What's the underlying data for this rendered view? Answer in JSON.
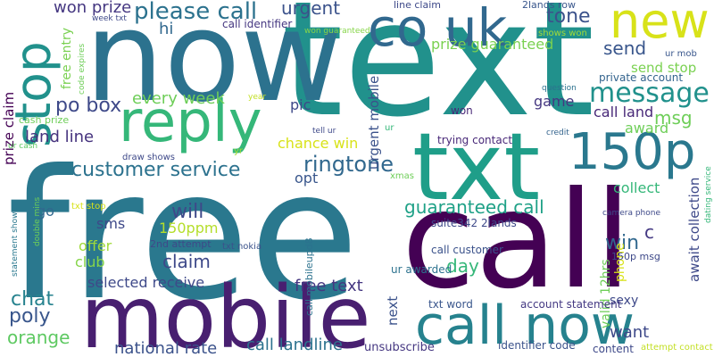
{
  "words": [
    {
      "text": "free",
      "color": "#2a788e"
    },
    {
      "text": "text",
      "color": "#21918c"
    },
    {
      "text": "now",
      "color": "#2c728e"
    },
    {
      "text": "call",
      "color": "#440154"
    },
    {
      "text": "mobile",
      "color": "#481f70"
    },
    {
      "text": "txt",
      "color": "#1f9e89"
    },
    {
      "text": "new",
      "color": "#d8e219"
    },
    {
      "text": "co uk",
      "color": "#31688e"
    },
    {
      "text": "reply",
      "color": "#35b779"
    },
    {
      "text": "stop",
      "color": "#21918c"
    },
    {
      "text": "call now",
      "color": "#26828e"
    },
    {
      "text": "150p",
      "color": "#2a788e"
    },
    {
      "text": "please call",
      "color": "#2c728e"
    },
    {
      "text": "message",
      "color": "#21918c"
    },
    {
      "text": "customer service",
      "color": "#2c728e"
    },
    {
      "text": "ringtone",
      "color": "#31688e"
    },
    {
      "text": "guaranteed call",
      "color": "#1fa187"
    },
    {
      "text": "urgent",
      "color": "#3b528b"
    },
    {
      "text": "tone",
      "color": "#3b528b"
    },
    {
      "text": "send",
      "color": "#39568c"
    },
    {
      "text": "po box",
      "color": "#3e4989"
    },
    {
      "text": "every week",
      "color": "#6ece58"
    },
    {
      "text": "call land",
      "color": "#482878"
    },
    {
      "text": "msg",
      "color": "#6ece58"
    },
    {
      "text": "prize guaranteed",
      "color": "#7ad151"
    },
    {
      "text": "land line",
      "color": "#46337e"
    },
    {
      "text": "will",
      "color": "#3e4989"
    },
    {
      "text": "claim",
      "color": "#3e4989"
    },
    {
      "text": "win",
      "color": "#31688e"
    },
    {
      "text": "chat",
      "color": "#26828e"
    },
    {
      "text": "poly",
      "color": "#39568c"
    },
    {
      "text": "orange",
      "color": "#5ec962"
    },
    {
      "text": "day",
      "color": "#35b779"
    },
    {
      "text": "free text",
      "color": "#453781"
    },
    {
      "text": "national rate",
      "color": "#3b528b"
    },
    {
      "text": "call landline",
      "color": "#2c728e"
    },
    {
      "text": "selected receive",
      "color": "#3e4989"
    },
    {
      "text": "want",
      "color": "#3e4989"
    },
    {
      "text": "prize claim",
      "color": "#440154"
    },
    {
      "text": "won prize",
      "color": "#453781"
    },
    {
      "text": "hi",
      "color": "#31688e"
    },
    {
      "text": "free entry",
      "color": "#7ad151"
    },
    {
      "text": "pic",
      "color": "#3e4989"
    },
    {
      "text": "chance win",
      "color": "#d8e219"
    },
    {
      "text": "opt",
      "color": "#39568c"
    },
    {
      "text": "sms",
      "color": "#3e4989"
    },
    {
      "text": "150ppm",
      "color": "#b5de2b"
    },
    {
      "text": "offer",
      "color": "#a0da39"
    },
    {
      "text": "club",
      "color": "#86d549"
    },
    {
      "text": "go",
      "color": "#31688e"
    },
    {
      "text": "collect",
      "color": "#35b779"
    },
    {
      "text": "award",
      "color": "#6ece58"
    },
    {
      "text": "send stop",
      "color": "#7ad151"
    },
    {
      "text": "game",
      "color": "#453781"
    },
    {
      "text": "next",
      "color": "#3b528b"
    },
    {
      "text": "urgent mobile",
      "color": "#3b528b"
    },
    {
      "text": "await collection",
      "color": "#3e4989"
    },
    {
      "text": "valid 12hrs",
      "color": "#6ece58"
    },
    {
      "text": "phone",
      "color": "#d8e219"
    },
    {
      "text": "c",
      "color": "#443983"
    },
    {
      "text": "sexy",
      "color": "#3e4989"
    },
    {
      "text": "account statement",
      "color": "#443983"
    },
    {
      "text": "identifier code",
      "color": "#3b528b"
    },
    {
      "text": "unsubscribe",
      "color": "#453781"
    },
    {
      "text": "content",
      "color": "#3e4989"
    },
    {
      "text": "attempt contact",
      "color": "#c2df23"
    },
    {
      "text": "call customer",
      "color": "#3b528b"
    },
    {
      "text": "txt word",
      "color": "#39568c"
    },
    {
      "text": "ur awarded",
      "color": "#2c728e"
    },
    {
      "text": "call mobileupd8",
      "color": "#2c728e"
    },
    {
      "text": "suite342 2lands",
      "color": "#3e4989"
    },
    {
      "text": "trying contact",
      "color": "#482878"
    },
    {
      "text": "won",
      "color": "#482878"
    },
    {
      "text": "private account",
      "color": "#33638d"
    },
    {
      "text": "ur mob",
      "color": "#39568c"
    },
    {
      "text": "line claim",
      "color": "#3e4989"
    },
    {
      "text": "2lands row",
      "color": "#39568c"
    },
    {
      "text": "call identifier",
      "color": "#453781"
    },
    {
      "text": "won guaranteed",
      "color": "#86d549"
    },
    {
      "text": "week txt",
      "color": "#3e4989"
    },
    {
      "text": "shows won",
      "color": "#a0da39"
    },
    {
      "text": "code expires",
      "color": "#6ece58"
    },
    {
      "text": "cash prize",
      "color": "#6ece58"
    },
    {
      "text": "ur cash",
      "color": "#5ec962"
    },
    {
      "text": "year",
      "color": "#c2df23"
    },
    {
      "text": "tell ur",
      "color": "#3e4989"
    },
    {
      "text": "ur",
      "color": "#35b779"
    },
    {
      "text": "credit",
      "color": "#33638d"
    },
    {
      "text": "question",
      "color": "#2c728e"
    },
    {
      "text": "yr",
      "color": "#a0da39"
    },
    {
      "text": "draw shows",
      "color": "#3e4989"
    },
    {
      "text": "xmas",
      "color": "#6ece58"
    },
    {
      "text": "txt stop",
      "color": "#d8e219"
    },
    {
      "text": "2nd attempt",
      "color": "#3e4989"
    },
    {
      "text": "txt nokia",
      "color": "#3b528b"
    },
    {
      "text": "camera phone",
      "color": "#3e4989"
    },
    {
      "text": "dating service",
      "color": "#35b779"
    },
    {
      "text": "150p msg",
      "color": "#3e4989"
    },
    {
      "text": "statement shows",
      "color": "#2a788e"
    },
    {
      "text": "double mins",
      "color": "#6ece58"
    }
  ]
}
